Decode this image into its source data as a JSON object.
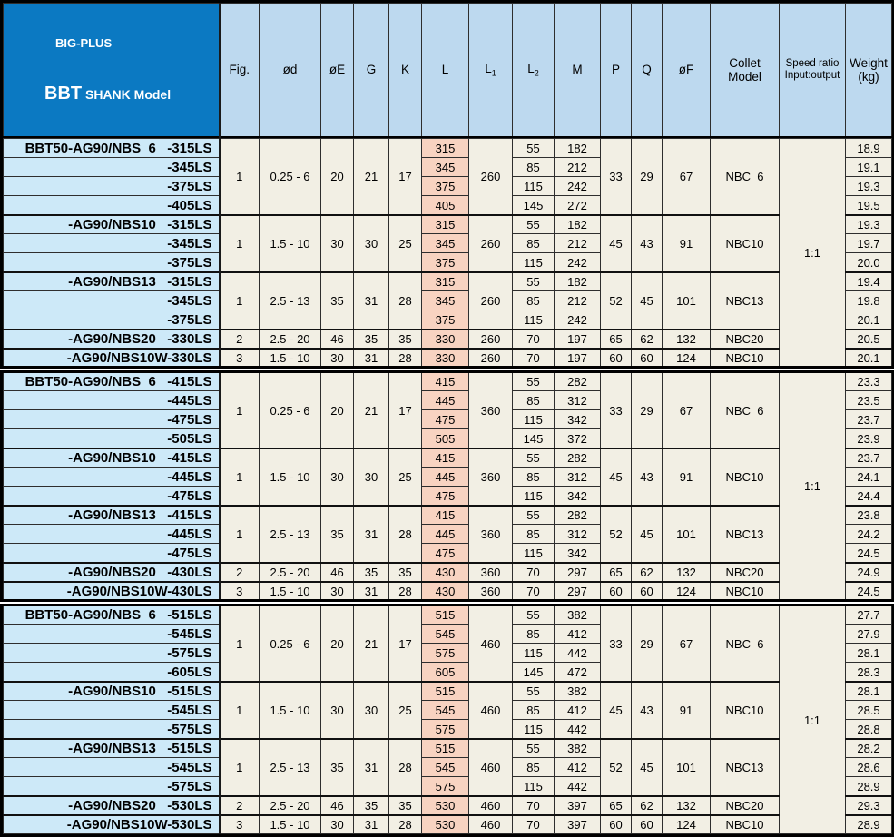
{
  "colors": {
    "header_blue": "#0b79c2",
    "column_header_blue": "#bdd9ef",
    "model_cell_blue": "#cde9f8",
    "data_cell_cream": "#f2efe4",
    "l_column_salmon": "#f8d3c1",
    "border": "#000000"
  },
  "table": {
    "title": {
      "line1": "BIG-PLUS",
      "brand": "BBT",
      "rest": " SHANK Model"
    },
    "columns": [
      {
        "id": "fig",
        "label": "Fig."
      },
      {
        "id": "od",
        "label": "ød"
      },
      {
        "id": "oe",
        "label": "øE"
      },
      {
        "id": "g",
        "label": "G"
      },
      {
        "id": "k",
        "label": "K"
      },
      {
        "id": "l",
        "label": "L"
      },
      {
        "id": "l1",
        "label": "L",
        "sub": "1"
      },
      {
        "id": "l2",
        "label": "L",
        "sub": "2"
      },
      {
        "id": "m",
        "label": "M"
      },
      {
        "id": "p",
        "label": "P"
      },
      {
        "id": "q",
        "label": "Q"
      },
      {
        "id": "of",
        "label": "øF"
      },
      {
        "id": "collet",
        "lines": [
          "Collet",
          "Model"
        ]
      },
      {
        "id": "speed",
        "lines": [
          "Speed ratio",
          "Input:output"
        ]
      },
      {
        "id": "weight",
        "lines": [
          "Weight",
          "(kg)"
        ]
      }
    ],
    "groups": [
      {
        "speed_ratio": "1:1",
        "subgroups": [
          {
            "fig": "1",
            "od": "0.25 - 6",
            "oe": "20",
            "g": "21",
            "k": "17",
            "l1": "260",
            "p": "33",
            "q": "29",
            "of": "67",
            "collet": "NBC  6",
            "rows": [
              {
                "model": "BBT50-AG90/NBS  6   -315LS",
                "l": "315",
                "l2": "55",
                "m": "182",
                "weight": "18.9"
              },
              {
                "model": "-345LS",
                "l": "345",
                "l2": "85",
                "m": "212",
                "weight": "19.1"
              },
              {
                "model": "-375LS",
                "l": "375",
                "l2": "115",
                "m": "242",
                "weight": "19.3"
              },
              {
                "model": "-405LS",
                "l": "405",
                "l2": "145",
                "m": "272",
                "weight": "19.5"
              }
            ]
          },
          {
            "fig": "1",
            "od": "1.5 - 10",
            "oe": "30",
            "g": "30",
            "k": "25",
            "l1": "260",
            "p": "45",
            "q": "43",
            "of": "91",
            "collet": "NBC10",
            "rows": [
              {
                "model": "-AG90/NBS10   -315LS",
                "l": "315",
                "l2": "55",
                "m": "182",
                "weight": "19.3"
              },
              {
                "model": "-345LS",
                "l": "345",
                "l2": "85",
                "m": "212",
                "weight": "19.7"
              },
              {
                "model": "-375LS",
                "l": "375",
                "l2": "115",
                "m": "242",
                "weight": "20.0"
              }
            ]
          },
          {
            "fig": "1",
            "od": "2.5 - 13",
            "oe": "35",
            "g": "31",
            "k": "28",
            "l1": "260",
            "p": "52",
            "q": "45",
            "of": "101",
            "collet": "NBC13",
            "rows": [
              {
                "model": "-AG90/NBS13   -315LS",
                "l": "315",
                "l2": "55",
                "m": "182",
                "weight": "19.4"
              },
              {
                "model": "-345LS",
                "l": "345",
                "l2": "85",
                "m": "212",
                "weight": "19.8"
              },
              {
                "model": "-375LS",
                "l": "375",
                "l2": "115",
                "m": "242",
                "weight": "20.1"
              }
            ]
          },
          {
            "fig": "2",
            "od": "2.5 - 20",
            "oe": "46",
            "g": "35",
            "k": "35",
            "l1": "260",
            "p": "65",
            "q": "62",
            "of": "132",
            "collet": "NBC20",
            "rows": [
              {
                "model": "-AG90/NBS20   -330LS",
                "l": "330",
                "l2": "70",
                "m": "197",
                "weight": "20.5"
              }
            ]
          },
          {
            "fig": "3",
            "od": "1.5 - 10",
            "oe": "30",
            "g": "31",
            "k": "28",
            "l1": "260",
            "p": "60",
            "q": "60",
            "of": "124",
            "collet": "NBC10",
            "rows": [
              {
                "model": "-AG90/NBS10W-330LS",
                "l": "330",
                "l2": "70",
                "m": "197",
                "weight": "20.1"
              }
            ]
          }
        ]
      },
      {
        "speed_ratio": "1:1",
        "subgroups": [
          {
            "fig": "1",
            "od": "0.25 - 6",
            "oe": "20",
            "g": "21",
            "k": "17",
            "l1": "360",
            "p": "33",
            "q": "29",
            "of": "67",
            "collet": "NBC  6",
            "rows": [
              {
                "model": "BBT50-AG90/NBS  6   -415LS",
                "l": "415",
                "l2": "55",
                "m": "282",
                "weight": "23.3"
              },
              {
                "model": "-445LS",
                "l": "445",
                "l2": "85",
                "m": "312",
                "weight": "23.5"
              },
              {
                "model": "-475LS",
                "l": "475",
                "l2": "115",
                "m": "342",
                "weight": "23.7"
              },
              {
                "model": "-505LS",
                "l": "505",
                "l2": "145",
                "m": "372",
                "weight": "23.9"
              }
            ]
          },
          {
            "fig": "1",
            "od": "1.5 - 10",
            "oe": "30",
            "g": "30",
            "k": "25",
            "l1": "360",
            "p": "45",
            "q": "43",
            "of": "91",
            "collet": "NBC10",
            "rows": [
              {
                "model": "-AG90/NBS10   -415LS",
                "l": "415",
                "l2": "55",
                "m": "282",
                "weight": "23.7"
              },
              {
                "model": "-445LS",
                "l": "445",
                "l2": "85",
                "m": "312",
                "weight": "24.1"
              },
              {
                "model": "-475LS",
                "l": "475",
                "l2": "115",
                "m": "342",
                "weight": "24.4"
              }
            ]
          },
          {
            "fig": "1",
            "od": "2.5 - 13",
            "oe": "35",
            "g": "31",
            "k": "28",
            "l1": "360",
            "p": "52",
            "q": "45",
            "of": "101",
            "collet": "NBC13",
            "rows": [
              {
                "model": "-AG90/NBS13   -415LS",
                "l": "415",
                "l2": "55",
                "m": "282",
                "weight": "23.8"
              },
              {
                "model": "-445LS",
                "l": "445",
                "l2": "85",
                "m": "312",
                "weight": "24.2"
              },
              {
                "model": "-475LS",
                "l": "475",
                "l2": "115",
                "m": "342",
                "weight": "24.5"
              }
            ]
          },
          {
            "fig": "2",
            "od": "2.5 - 20",
            "oe": "46",
            "g": "35",
            "k": "35",
            "l1": "360",
            "p": "65",
            "q": "62",
            "of": "132",
            "collet": "NBC20",
            "rows": [
              {
                "model": "-AG90/NBS20   -430LS",
                "l": "430",
                "l2": "70",
                "m": "297",
                "weight": "24.9"
              }
            ]
          },
          {
            "fig": "3",
            "od": "1.5 - 10",
            "oe": "30",
            "g": "31",
            "k": "28",
            "l1": "360",
            "p": "60",
            "q": "60",
            "of": "124",
            "collet": "NBC10",
            "rows": [
              {
                "model": "-AG90/NBS10W-430LS",
                "l": "430",
                "l2": "70",
                "m": "297",
                "weight": "24.5"
              }
            ]
          }
        ]
      },
      {
        "speed_ratio": "1:1",
        "subgroups": [
          {
            "fig": "1",
            "od": "0.25 - 6",
            "oe": "20",
            "g": "21",
            "k": "17",
            "l1": "460",
            "p": "33",
            "q": "29",
            "of": "67",
            "collet": "NBC  6",
            "rows": [
              {
                "model": "BBT50-AG90/NBS  6   -515LS",
                "l": "515",
                "l2": "55",
                "m": "382",
                "weight": "27.7"
              },
              {
                "model": "-545LS",
                "l": "545",
                "l2": "85",
                "m": "412",
                "weight": "27.9"
              },
              {
                "model": "-575LS",
                "l": "575",
                "l2": "115",
                "m": "442",
                "weight": "28.1"
              },
              {
                "model": "-605LS",
                "l": "605",
                "l2": "145",
                "m": "472",
                "weight": "28.3"
              }
            ]
          },
          {
            "fig": "1",
            "od": "1.5 - 10",
            "oe": "30",
            "g": "30",
            "k": "25",
            "l1": "460",
            "p": "45",
            "q": "43",
            "of": "91",
            "collet": "NBC10",
            "rows": [
              {
                "model": "-AG90/NBS10   -515LS",
                "l": "515",
                "l2": "55",
                "m": "382",
                "weight": "28.1"
              },
              {
                "model": "-545LS",
                "l": "545",
                "l2": "85",
                "m": "412",
                "weight": "28.5"
              },
              {
                "model": "-575LS",
                "l": "575",
                "l2": "115",
                "m": "442",
                "weight": "28.8"
              }
            ]
          },
          {
            "fig": "1",
            "od": "2.5 - 13",
            "oe": "35",
            "g": "31",
            "k": "28",
            "l1": "460",
            "p": "52",
            "q": "45",
            "of": "101",
            "collet": "NBC13",
            "rows": [
              {
                "model": "-AG90/NBS13   -515LS",
                "l": "515",
                "l2": "55",
                "m": "382",
                "weight": "28.2"
              },
              {
                "model": "-545LS",
                "l": "545",
                "l2": "85",
                "m": "412",
                "weight": "28.6"
              },
              {
                "model": "-575LS",
                "l": "575",
                "l2": "115",
                "m": "442",
                "weight": "28.9"
              }
            ]
          },
          {
            "fig": "2",
            "od": "2.5 - 20",
            "oe": "46",
            "g": "35",
            "k": "35",
            "l1": "460",
            "p": "65",
            "q": "62",
            "of": "132",
            "collet": "NBC20",
            "rows": [
              {
                "model": "-AG90/NBS20   -530LS",
                "l": "530",
                "l2": "70",
                "m": "397",
                "weight": "29.3"
              }
            ]
          },
          {
            "fig": "3",
            "od": "1.5 - 10",
            "oe": "30",
            "g": "31",
            "k": "28",
            "l1": "460",
            "p": "60",
            "q": "60",
            "of": "124",
            "collet": "NBC10",
            "rows": [
              {
                "model": "-AG90/NBS10W-530LS",
                "l": "530",
                "l2": "70",
                "m": "397",
                "weight": "28.9"
              }
            ]
          }
        ]
      }
    ]
  }
}
